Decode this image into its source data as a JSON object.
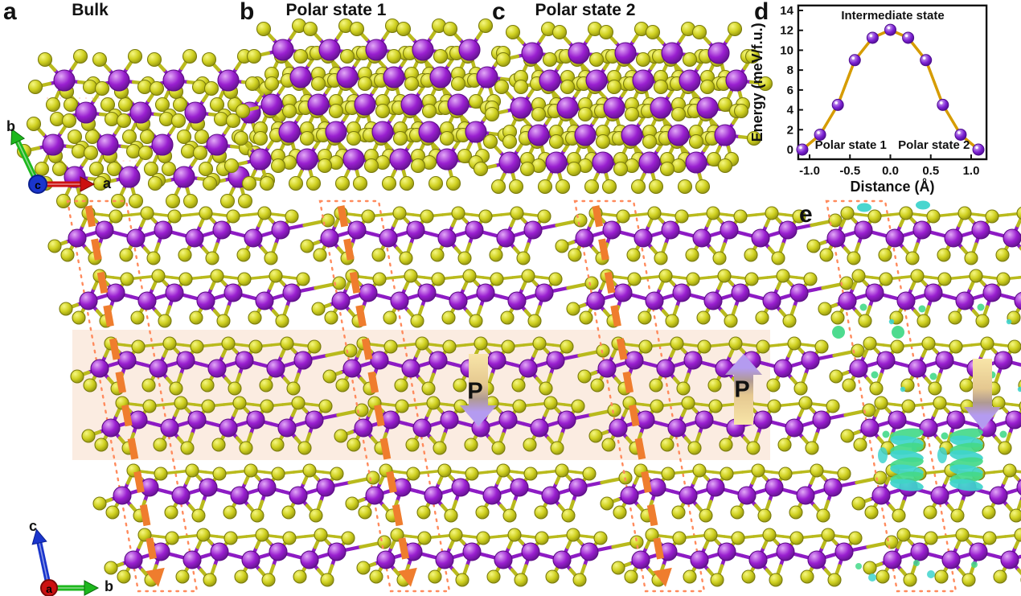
{
  "figure": {
    "panels": [
      {
        "id": "a",
        "label": "a",
        "title": "Bulk"
      },
      {
        "id": "b",
        "label": "b",
        "title": "Polar state 1"
      },
      {
        "id": "c",
        "label": "c",
        "title": "Polar state 2"
      },
      {
        "id": "d",
        "label": "d",
        "title": ""
      },
      {
        "id": "e",
        "label": "e",
        "title": ""
      }
    ]
  },
  "axis_triads": {
    "top": {
      "origin": "c",
      "vertical": "b",
      "horizontal": "a"
    },
    "bottom": {
      "origin": "a",
      "vertical": "c",
      "horizontal": "b"
    }
  },
  "polarization_labels": {
    "state1": "P",
    "state2": "P"
  },
  "colors": {
    "purple_atom": "#9a1fd0",
    "yellow_atom": "#cfd020",
    "bond_purple": "#8d1bc4",
    "bond_yellow": "#b9ba1c",
    "arrow_orange": "#ef7d2e",
    "cell_dot": "#ff8a5c",
    "band_bg": "#fbece1",
    "iso_green": "#44d989",
    "iso_cyan": "#3fd4cc",
    "chart_line": "#d69c00",
    "chart_marker": "#7d22d4",
    "axis_red": "#cc1111",
    "axis_green": "#1db81d",
    "axis_blue": "#1a35cc",
    "p_arrow_purple": "#b49bf0",
    "p_arrow_yellow": "#f8e5a8"
  },
  "chart_data": {
    "type": "line",
    "title": "",
    "xlabel": "Distance (Å)",
    "ylabel": "Energy (meV/f.u.)",
    "x": [
      -1.09,
      -0.87,
      -0.65,
      -0.44,
      -0.22,
      0.0,
      0.22,
      0.44,
      0.65,
      0.87,
      1.09
    ],
    "y": [
      0.0,
      1.5,
      4.5,
      9.0,
      11.25,
      12.05,
      11.25,
      9.0,
      4.5,
      1.5,
      0.0
    ],
    "xticks": [
      "-1.0",
      "-0.5",
      "0.0",
      "0.5",
      "1.0"
    ],
    "xtick_values": [
      -1.0,
      -0.5,
      0.0,
      0.5,
      1.0
    ],
    "yticks": [
      "0",
      "2",
      "4",
      "6",
      "8",
      "10",
      "12",
      "14"
    ],
    "ytick_values": [
      0,
      2,
      4,
      6,
      8,
      10,
      12,
      14
    ],
    "xlim": [
      -1.14,
      1.19
    ],
    "ylim": [
      -0.97,
      14.5
    ],
    "grid": false,
    "legend_position": "none",
    "annotations": [
      {
        "text": "Intermediate state",
        "x": 0.03,
        "y": 13.1,
        "anchor": "middle"
      },
      {
        "text": "Polar state 1",
        "x": -0.49,
        "y": 0.1,
        "anchor": "middle"
      },
      {
        "text": "Polar state 2",
        "x": 0.54,
        "y": 0.1,
        "anchor": "middle"
      }
    ]
  }
}
